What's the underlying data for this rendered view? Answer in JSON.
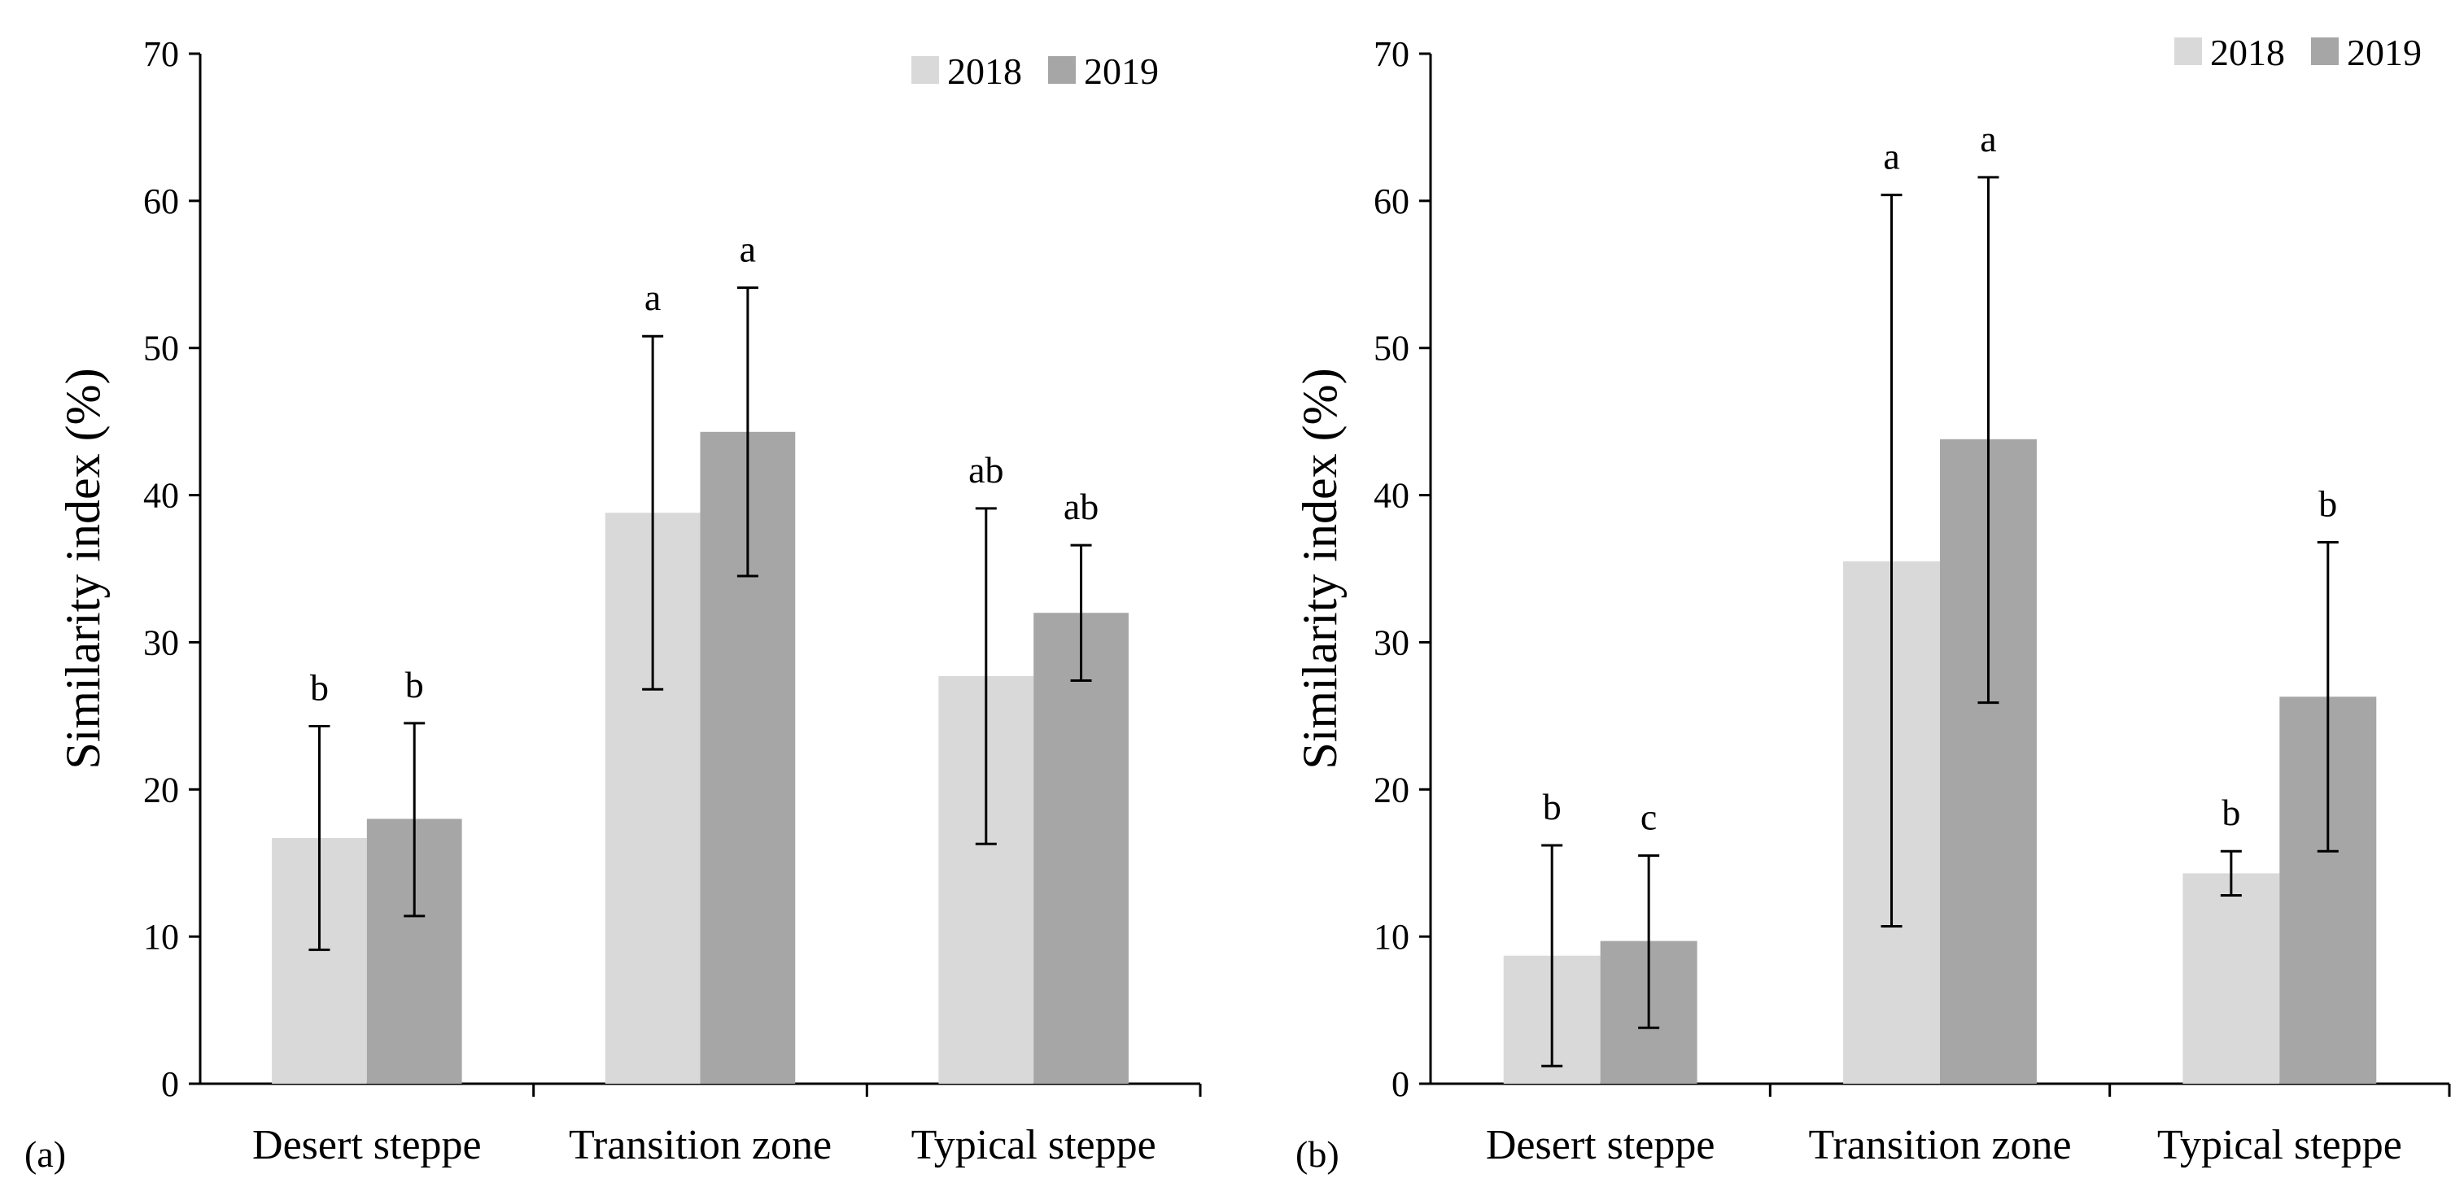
{
  "chart_data": [
    {
      "type": "bar",
      "panel_label": "(a)",
      "ylabel": "Similarity index (%)",
      "xlabel": "",
      "ylim": [
        0,
        70
      ],
      "yticks": [
        0,
        10,
        20,
        30,
        40,
        50,
        60,
        70
      ],
      "categories": [
        "Desert steppe",
        "Transition zone",
        "Typical steppe"
      ],
      "legend_position": "top-right",
      "series": [
        {
          "name": "2018",
          "color": "#d9d9d9",
          "values": [
            16.7,
            38.8,
            27.7
          ],
          "error_low": [
            9.1,
            26.8,
            16.3
          ],
          "error_high": [
            24.3,
            50.8,
            39.1
          ],
          "letters": [
            "b",
            "a",
            "ab"
          ]
        },
        {
          "name": "2019",
          "color": "#a6a6a6",
          "values": [
            18.0,
            44.3,
            32.0
          ],
          "error_low": [
            11.4,
            34.5,
            27.4
          ],
          "error_high": [
            24.5,
            54.1,
            36.6
          ],
          "letters": [
            "b",
            "a",
            "ab"
          ]
        }
      ]
    },
    {
      "type": "bar",
      "panel_label": "(b)",
      "ylabel": "Similarity index (%)",
      "xlabel": "",
      "ylim": [
        0,
        70
      ],
      "yticks": [
        0,
        10,
        20,
        30,
        40,
        50,
        60,
        70
      ],
      "categories": [
        "Desert steppe",
        "Transition zone",
        "Typical steppe"
      ],
      "legend_position": "top-right",
      "series": [
        {
          "name": "2018",
          "color": "#d9d9d9",
          "values": [
            8.7,
            35.5,
            14.3
          ],
          "error_low": [
            1.2,
            10.7,
            12.8
          ],
          "error_high": [
            16.2,
            60.4,
            15.8
          ],
          "letters": [
            "b",
            "a",
            "b"
          ]
        },
        {
          "name": "2019",
          "color": "#a6a6a6",
          "values": [
            9.7,
            43.8,
            26.3
          ],
          "error_low": [
            3.8,
            25.9,
            15.8
          ],
          "error_high": [
            15.5,
            61.6,
            36.8
          ],
          "letters": [
            "c",
            "a",
            "b"
          ]
        }
      ]
    }
  ]
}
